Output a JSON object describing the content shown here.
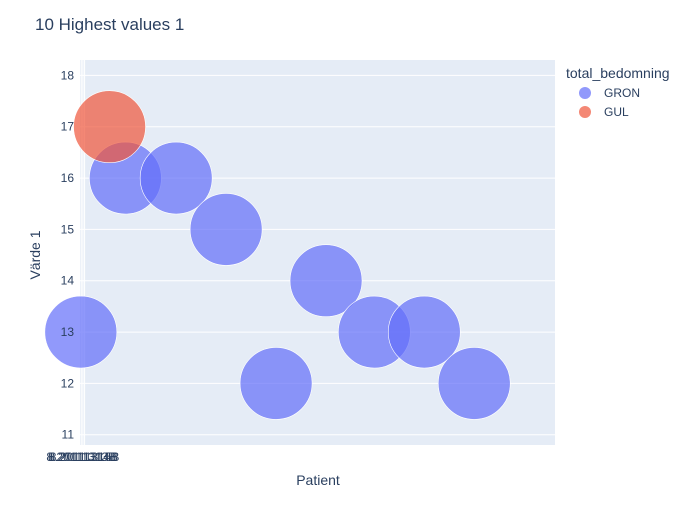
{
  "chart_data": {
    "type": "scatter",
    "title": "10 Highest values 1",
    "xlabel": "Patient",
    "ylabel": "Värde 1",
    "xlim": [
      8.2011131225,
      8.201115975
    ],
    "ylim": [
      10.8,
      18.3
    ],
    "x_ticks": [
      {
        "value": 8.20111313,
        "label": "8.20111313B"
      },
      {
        "value": 8.20111314,
        "label": "8.20111314B"
      },
      {
        "value": 8.20111315,
        "label": "8.20111315B"
      }
    ],
    "y_ticks": [
      11,
      12,
      13,
      14,
      15,
      16,
      17,
      18
    ],
    "grid": true,
    "legend": {
      "title": "total_bedomning",
      "placement": "top-right"
    },
    "series": [
      {
        "name": "GRON",
        "color": "#636efa",
        "points": [
          {
            "x": 8.2011131275,
            "y": 13
          },
          {
            "x": 8.201113395,
            "y": 16
          },
          {
            "x": 8.2011137,
            "y": 16
          },
          {
            "x": 8.201114,
            "y": 15
          },
          {
            "x": 8.2011143,
            "y": 12
          },
          {
            "x": 8.2011146,
            "y": 14
          },
          {
            "x": 8.20111489,
            "y": 13
          },
          {
            "x": 8.20111519,
            "y": 13
          },
          {
            "x": 8.20111549,
            "y": 12
          }
        ]
      },
      {
        "name": "GUL",
        "color": "#ef553b",
        "points": [
          {
            "x": 8.2011133,
            "y": 17
          }
        ]
      }
    ]
  }
}
